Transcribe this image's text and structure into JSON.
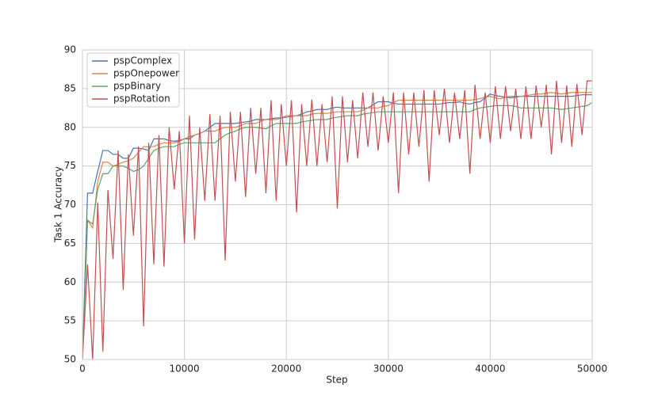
{
  "chart_data": {
    "type": "line",
    "xlabel": "Step",
    "ylabel": "Task 1 Accuracy",
    "x": [
      0,
      500,
      1000,
      1500,
      2000,
      2500,
      3000,
      3500,
      4000,
      4500,
      5000,
      5500,
      6000,
      6500,
      7000,
      7500,
      8000,
      8500,
      9000,
      9500,
      10000,
      10500,
      11000,
      11500,
      12000,
      12500,
      13000,
      13500,
      14000,
      14500,
      15000,
      15500,
      16000,
      16500,
      17000,
      17500,
      18000,
      18500,
      19000,
      19500,
      20000,
      20500,
      21000,
      21500,
      22000,
      22500,
      23000,
      23500,
      24000,
      24500,
      25000,
      25500,
      26000,
      26500,
      27000,
      27500,
      28000,
      28500,
      29000,
      29500,
      30000,
      30500,
      31000,
      31500,
      32000,
      32500,
      33000,
      33500,
      34000,
      34500,
      35000,
      35500,
      36000,
      36500,
      37000,
      37500,
      38000,
      38500,
      39000,
      39500,
      40000,
      40500,
      41000,
      41500,
      42000,
      42500,
      43000,
      43500,
      44000,
      44500,
      45000,
      45500,
      46000,
      46500,
      47000,
      47500,
      48000,
      48500,
      49000,
      49500,
      50000
    ],
    "series": [
      {
        "name": "pspComplex",
        "color": "#4c72b0",
        "values": [
          50,
          71.5,
          71.5,
          74.3,
          77,
          77,
          76.5,
          76.5,
          76,
          76,
          77.3,
          77.3,
          77.2,
          77,
          78.5,
          78.5,
          78.5,
          78.3,
          78.2,
          78.3,
          78.5,
          78.5,
          79,
          79.2,
          79.5,
          80,
          80.5,
          80.5,
          80.5,
          80.5,
          80.5,
          80.6,
          80.7,
          80.8,
          81,
          81,
          81,
          81.1,
          81.2,
          81.2,
          81.3,
          81.4,
          81.5,
          81.7,
          82,
          82.1,
          82.3,
          82.3,
          82.3,
          82.5,
          82.6,
          82.5,
          82.5,
          82.5,
          82.5,
          82.5,
          82.5,
          82.9,
          83.3,
          83.3,
          83.3,
          83.1,
          83,
          83,
          83,
          83,
          83,
          83,
          83,
          83,
          83,
          83.1,
          83.2,
          83.2,
          83.3,
          83.1,
          83,
          83.2,
          83.3,
          83.8,
          84.3,
          84.1,
          84,
          83.9,
          83.8,
          83.9,
          84,
          84,
          84,
          84,
          84,
          84,
          84,
          84,
          84,
          84,
          84,
          84.1,
          84.2,
          84.2,
          84.2
        ]
      },
      {
        "name": "pspOnepower",
        "color": "#dd8452",
        "values": [
          50,
          68,
          67,
          73,
          75.5,
          75.5,
          75,
          75.2,
          75.5,
          75.7,
          76,
          76.8,
          77.5,
          77.5,
          77.5,
          77.8,
          78,
          78,
          78,
          78.2,
          78.5,
          78.8,
          79,
          79.2,
          79.5,
          79.5,
          79.5,
          79.8,
          80,
          80,
          80,
          80.2,
          80.5,
          80.5,
          80.5,
          80.8,
          81,
          81,
          81,
          81.2,
          81.5,
          81.5,
          81.5,
          81.5,
          81.5,
          81.7,
          81.8,
          81.8,
          81.8,
          81.9,
          82,
          82,
          82,
          82,
          82,
          82.2,
          82.5,
          82.5,
          82.5,
          82.7,
          82.8,
          83.2,
          83.5,
          83.5,
          83.5,
          83.5,
          83.5,
          83.5,
          83.5,
          83.5,
          83.5,
          83.5,
          83.5,
          83.5,
          83.5,
          83.5,
          83.5,
          83.6,
          83.7,
          83.9,
          84,
          83.8,
          83.7,
          83.9,
          84,
          84,
          84,
          84.1,
          84.2,
          84.3,
          84.3,
          84.4,
          84.5,
          84.4,
          84.3,
          84.4,
          84.5,
          84.5,
          84.5,
          84.5,
          84.5
        ]
      },
      {
        "name": "pspBinary",
        "color": "#55a868",
        "values": [
          50,
          68,
          67.5,
          72,
          74,
          74,
          75,
          75,
          75,
          74.7,
          74.3,
          74.5,
          75,
          76,
          77,
          77.3,
          77.5,
          77.5,
          77.5,
          77.8,
          78,
          78,
          78,
          78,
          78,
          78,
          78,
          78.5,
          79,
          79.3,
          79.5,
          79.8,
          80,
          80,
          80,
          79.9,
          79.8,
          80.2,
          80.5,
          80.5,
          80.5,
          80.5,
          80.5,
          80.7,
          80.8,
          80.9,
          81,
          81,
          81,
          81.2,
          81.3,
          81.4,
          81.5,
          81.5,
          81.5,
          81.7,
          81.8,
          81.9,
          82,
          82,
          82,
          82,
          82,
          82,
          82,
          82,
          82,
          82,
          82,
          82,
          82,
          82,
          82,
          82,
          82,
          82,
          82,
          82.3,
          82.5,
          82.6,
          82.7,
          82.8,
          82.8,
          82.8,
          82.8,
          82.7,
          82.5,
          82.5,
          82.5,
          82.5,
          82.5,
          82.5,
          82.5,
          82.4,
          82.3,
          82.4,
          82.5,
          82.6,
          82.7,
          82.8,
          83.2
        ]
      },
      {
        "name": "pspRotation",
        "color": "#c44e52",
        "values": [
          50,
          62.3,
          50,
          70.3,
          51,
          71.9,
          63,
          77,
          59,
          76.5,
          66,
          77.5,
          54.3,
          78,
          62.3,
          79,
          62,
          80,
          72,
          79.5,
          65,
          81.5,
          65.5,
          80,
          70.5,
          81.7,
          70.5,
          81.5,
          62.8,
          82,
          73,
          82,
          71,
          82.5,
          74,
          82.5,
          71.5,
          83.5,
          70.5,
          83,
          75,
          83.5,
          69,
          83,
          75,
          83.6,
          75,
          83,
          75.5,
          84,
          69.5,
          84,
          75.5,
          83.5,
          76,
          84.5,
          77.5,
          84.5,
          77,
          84,
          78,
          84.5,
          71.5,
          84.5,
          76.5,
          84.5,
          77.5,
          84.8,
          73,
          84.8,
          79,
          85,
          78,
          84.5,
          78.5,
          84.8,
          74,
          85.5,
          78.5,
          84.5,
          78,
          85.3,
          78.5,
          85.3,
          79.5,
          85,
          78.5,
          85.3,
          78.5,
          85.4,
          80,
          85.5,
          76.5,
          86,
          78,
          85.4,
          77.5,
          85.6,
          79,
          86,
          86
        ]
      }
    ],
    "xlim": [
      0,
      50000
    ],
    "xticks": [
      0,
      10000,
      20000,
      30000,
      40000,
      50000
    ],
    "ylim": [
      50,
      90
    ],
    "yticks": [
      50,
      55,
      60,
      65,
      70,
      75,
      80,
      85,
      90
    ],
    "grid": true,
    "legend": "upper left"
  }
}
